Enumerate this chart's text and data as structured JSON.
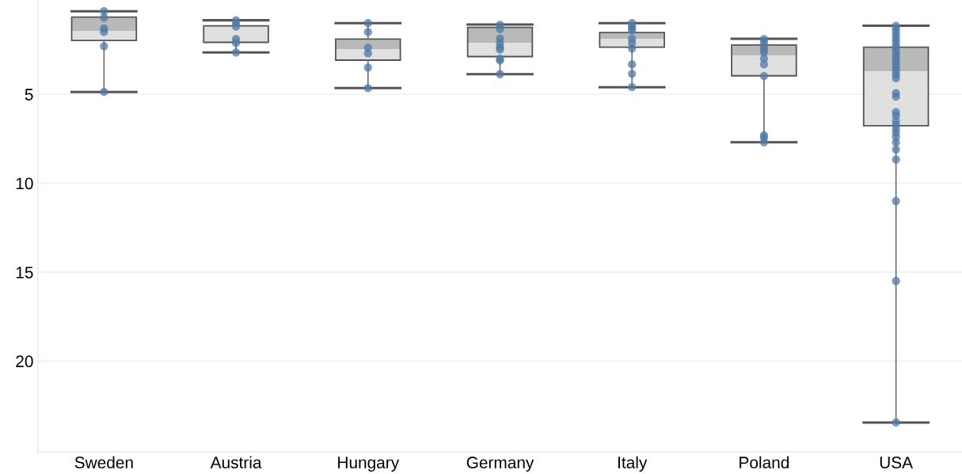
{
  "chart_data": {
    "type": "box",
    "categories": [
      "Sweden",
      "Austria",
      "Hungary",
      "Germany",
      "Italy",
      "Poland",
      "USA"
    ],
    "boxes": [
      {
        "low": 0.33,
        "q1": 0.66,
        "median": 1.46,
        "q3": 1.97,
        "high": 4.87
      },
      {
        "low": 0.84,
        "q1": 1.15,
        "median": 1.2,
        "q3": 2.08,
        "high": 2.65
      },
      {
        "low": 1.0,
        "q1": 1.9,
        "median": 2.48,
        "q3": 3.08,
        "high": 4.65
      },
      {
        "low": 1.08,
        "q1": 1.24,
        "median": 2.1,
        "q3": 2.88,
        "high": 3.87
      },
      {
        "low": 1.0,
        "q1": 1.53,
        "median": 1.88,
        "q3": 2.35,
        "high": 4.6
      },
      {
        "low": 1.88,
        "q1": 2.23,
        "median": 2.83,
        "q3": 3.96,
        "high": 7.7
      },
      {
        "low": 1.15,
        "q1": 2.35,
        "median": 3.72,
        "q3": 6.77,
        "high": 23.45
      }
    ],
    "series": [
      {
        "type": "scatter",
        "color": "#4e79a7",
        "x": [
          "Sweden",
          "Sweden",
          "Sweden",
          "Sweden",
          "Sweden",
          "Sweden",
          "Austria",
          "Austria",
          "Austria",
          "Austria",
          "Austria",
          "Austria",
          "Hungary",
          "Hungary",
          "Hungary",
          "Hungary",
          "Hungary",
          "Hungary",
          "Germany",
          "Germany",
          "Germany",
          "Germany",
          "Germany",
          "Germany",
          "Germany",
          "Germany",
          "Germany",
          "Italy",
          "Italy",
          "Italy",
          "Italy",
          "Italy",
          "Italy",
          "Italy",
          "Italy",
          "Italy",
          "Italy",
          "Poland",
          "Poland",
          "Poland",
          "Poland",
          "Poland",
          "Poland",
          "Poland",
          "Poland",
          "Poland",
          "Poland",
          "Poland",
          "USA",
          "USA",
          "USA",
          "USA",
          "USA",
          "USA",
          "USA",
          "USA",
          "USA",
          "USA",
          "USA",
          "USA",
          "USA",
          "USA",
          "USA",
          "USA",
          "USA",
          "USA",
          "USA",
          "USA",
          "USA",
          "USA",
          "USA",
          "USA",
          "USA",
          "USA",
          "USA",
          "USA",
          "USA",
          "USA",
          "USA"
        ],
        "values": [
          0.33,
          0.7,
          1.3,
          1.5,
          2.3,
          4.87,
          0.84,
          1.02,
          1.19,
          1.9,
          2.12,
          2.65,
          1.0,
          1.5,
          2.39,
          2.7,
          3.5,
          4.65,
          1.1,
          1.33,
          1.86,
          2.12,
          2.35,
          2.48,
          3.0,
          3.1,
          3.87,
          1.0,
          1.15,
          1.28,
          1.42,
          1.88,
          2.12,
          2.43,
          3.32,
          3.85,
          4.6,
          1.9,
          2.08,
          2.3,
          2.48,
          2.65,
          3.0,
          3.32,
          3.98,
          7.3,
          7.43,
          7.7,
          1.15,
          1.3,
          1.5,
          1.7,
          1.9,
          2.1,
          2.3,
          2.5,
          2.7,
          2.9,
          3.1,
          3.3,
          3.5,
          3.7,
          3.9,
          4.1,
          4.93,
          5.13,
          6.0,
          6.2,
          6.5,
          6.73,
          6.95,
          7.17,
          7.4,
          7.7,
          8.1,
          8.67,
          11.0,
          15.5,
          23.45
        ]
      }
    ],
    "ylim": [
      25.1,
      -0.3
    ],
    "yticks": [
      5,
      10,
      15,
      20
    ],
    "grid": "y",
    "marker": "circle"
  }
}
